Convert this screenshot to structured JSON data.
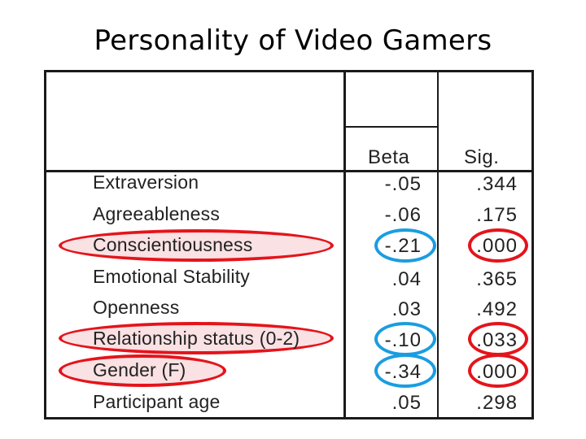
{
  "title": "Personality of Video Gamers",
  "table": {
    "headers": {
      "beta": "Beta",
      "sig": "Sig."
    },
    "rows": [
      {
        "label": "Extraversion",
        "beta": "-.05",
        "sig": ".344",
        "highlight": false
      },
      {
        "label": "Agreeableness",
        "beta": "-.06",
        "sig": ".175",
        "highlight": false
      },
      {
        "label": "Conscientiousness",
        "beta": "-.21",
        "sig": ".000",
        "highlight": true
      },
      {
        "label": "Emotional Stability",
        "beta": ".04",
        "sig": ".365",
        "highlight": false
      },
      {
        "label": "Openness",
        "beta": ".03",
        "sig": ".492",
        "highlight": false
      },
      {
        "label": "Relationship status (0-2)",
        "beta": "-.10",
        "sig": ".033",
        "highlight": true
      },
      {
        "label": "Gender (F)",
        "beta": "-.34",
        "sig": ".000",
        "highlight": true
      },
      {
        "label": "Participant age",
        "beta": ".05",
        "sig": ".298",
        "highlight": false
      }
    ]
  },
  "colors": {
    "highlight_red": "#e4141b",
    "highlight_blue": "#1a9de0",
    "highlight_fill": "#f0aaaf"
  }
}
